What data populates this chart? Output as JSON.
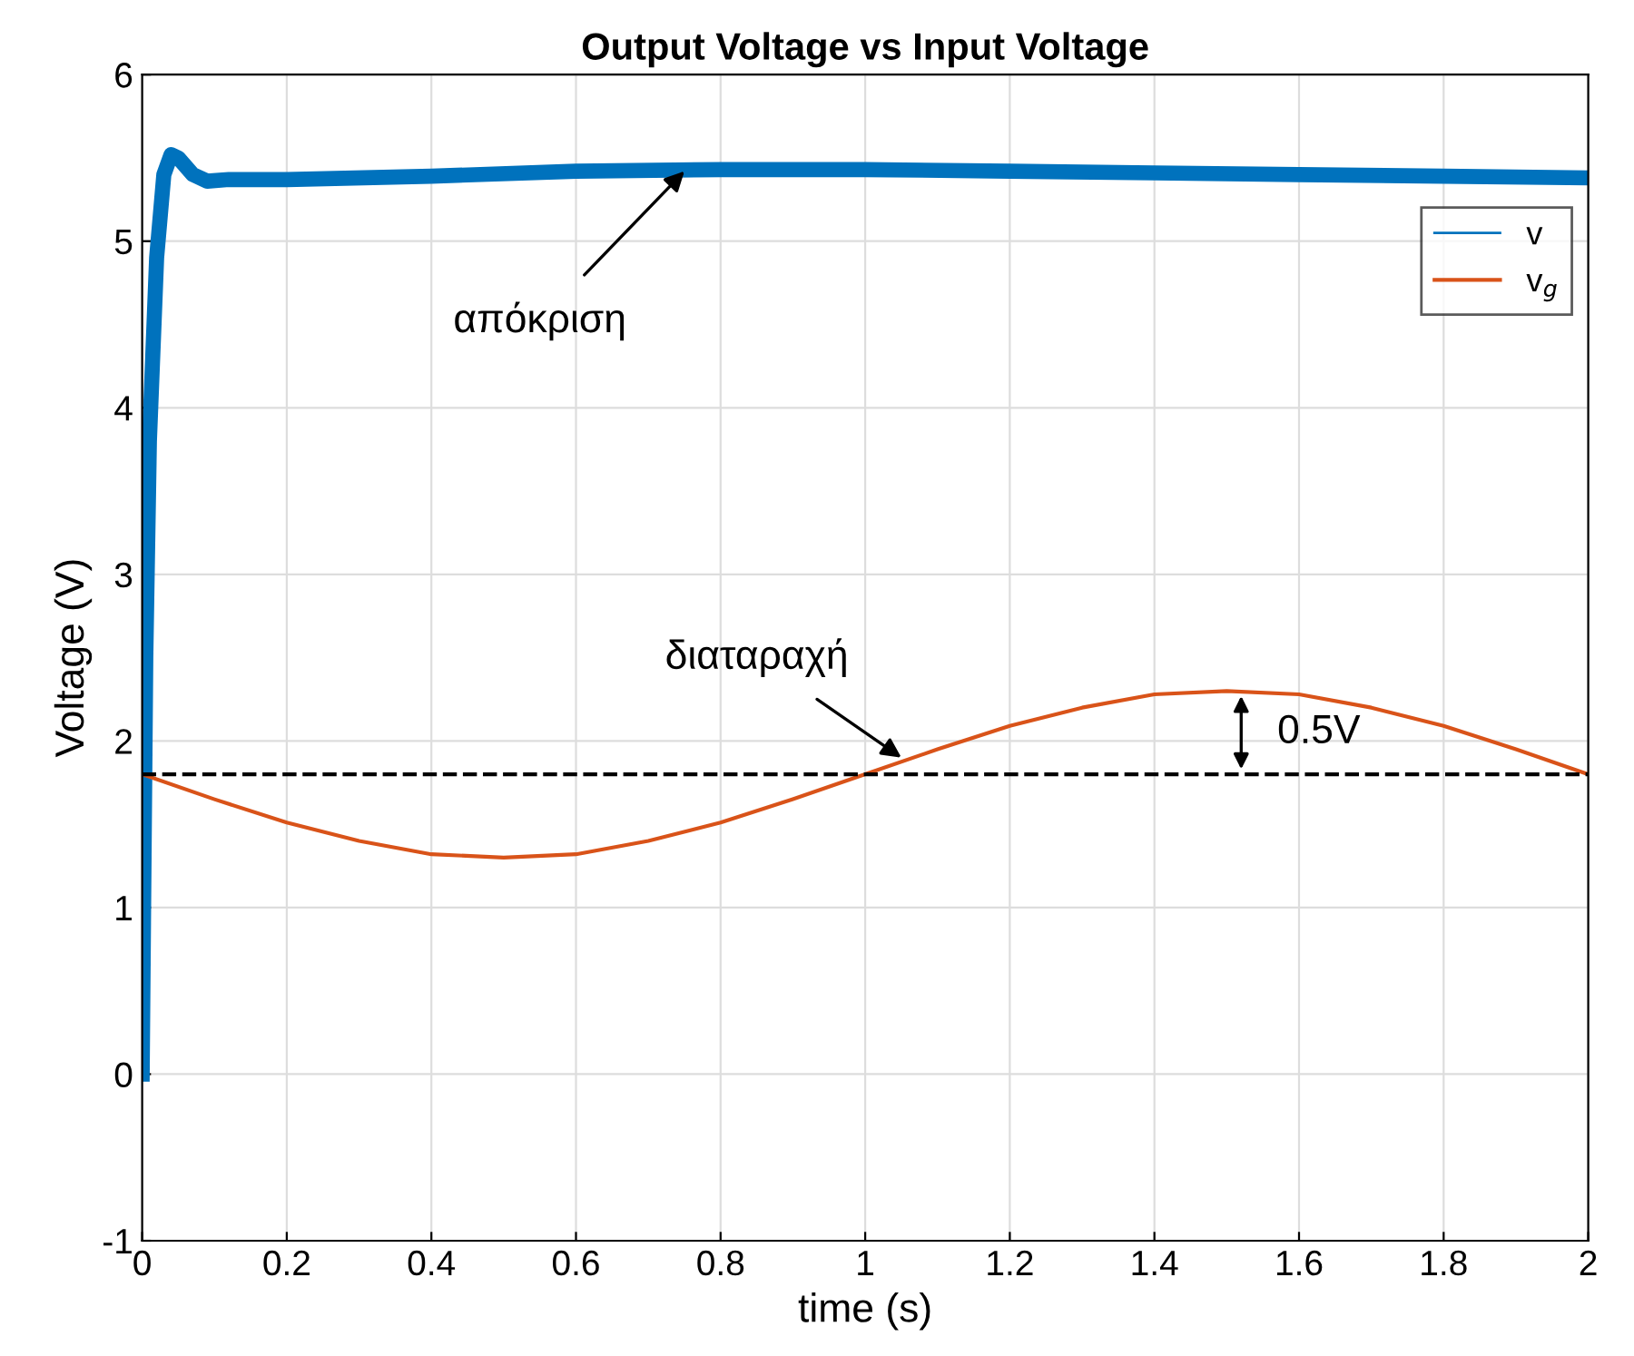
{
  "chart_data": {
    "type": "line",
    "title": "Output Voltage vs Input Voltage",
    "xlabel": "time (s)",
    "ylabel": "Voltage (V)",
    "xlim": [
      0,
      2
    ],
    "ylim": [
      -1,
      6
    ],
    "xticks": [
      0,
      0.2,
      0.4,
      0.6,
      0.8,
      1,
      1.2,
      1.4,
      1.6,
      1.8,
      2
    ],
    "yticks": [
      -1,
      0,
      1,
      2,
      3,
      4,
      5,
      6
    ],
    "grid": true,
    "legend": "top right",
    "series": [
      {
        "name": "v",
        "color": "#0072bd",
        "x": [
          0,
          0.005,
          0.01,
          0.02,
          0.03,
          0.04,
          0.05,
          0.07,
          0.09,
          0.12,
          0.2,
          0.4,
          0.6,
          0.8,
          1.0,
          1.2,
          1.4,
          1.6,
          1.8,
          2.0
        ],
        "values": [
          0,
          2.5,
          3.8,
          4.9,
          5.4,
          5.52,
          5.5,
          5.4,
          5.36,
          5.37,
          5.37,
          5.39,
          5.42,
          5.43,
          5.43,
          5.42,
          5.41,
          5.4,
          5.39,
          5.38
        ]
      },
      {
        "name": "v$_{g}$",
        "color": "#d95319",
        "x": [
          0,
          0.1,
          0.2,
          0.3,
          0.4,
          0.5,
          0.6,
          0.7,
          0.8,
          0.9,
          1.0,
          1.1,
          1.2,
          1.3,
          1.4,
          1.5,
          1.6,
          1.7,
          1.8,
          1.9,
          2.0
        ],
        "values": [
          1.8,
          1.65,
          1.51,
          1.4,
          1.32,
          1.3,
          1.32,
          1.4,
          1.51,
          1.65,
          1.8,
          1.95,
          2.09,
          2.2,
          2.28,
          2.3,
          2.28,
          2.2,
          2.09,
          1.95,
          1.8
        ]
      }
    ],
    "ref_lines": [
      {
        "axis": "y",
        "value": 1.8,
        "color": "#000000",
        "line_style": "dashed"
      }
    ],
    "annotations": [
      {
        "text": "απόκριση",
        "x": 0.75,
        "y": 5.42
      },
      {
        "text": "διαταραχή",
        "x": 1.05,
        "y": 1.9
      },
      "0.5V"
    ]
  }
}
